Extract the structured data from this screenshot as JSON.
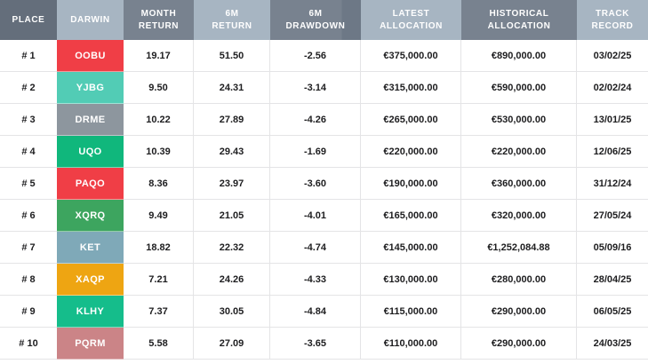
{
  "colors": {
    "header_dark": "#646e7b",
    "header_medium": "#78828f",
    "header_light": "#a7b5c2",
    "header_separator_dark": "#6d7886",
    "body_text": "#1d1d1f",
    "header_text": "#ffffff"
  },
  "table": {
    "columns": [
      {
        "key": "place",
        "label": "PLACE",
        "style": "hdr-dark"
      },
      {
        "key": "darwin",
        "label": "DARWIN",
        "style": "hdr-light"
      },
      {
        "key": "month_return",
        "label": "MONTH\nRETURN",
        "style": "hdr-medium"
      },
      {
        "key": "six_m_return",
        "label": "6M\nRETURN",
        "style": "hdr-light"
      },
      {
        "key": "six_m_drawdown",
        "label": "6M\nDRAWDOWN",
        "style": "hdr-split"
      },
      {
        "key": "latest_allocation",
        "label": "LATEST\nALLOCATION",
        "style": "hdr-light"
      },
      {
        "key": "historical_allocation",
        "label": "HISTORICAL\nALLOCATION",
        "style": "hdr-medium"
      },
      {
        "key": "track_record",
        "label": "TRACK\nRECORD",
        "style": "hdr-light"
      }
    ],
    "rows": [
      {
        "place": "# 1",
        "darwin": "OOBU",
        "darwin_color": "#f03e46",
        "month_return": "19.17",
        "six_m_return": "51.50",
        "six_m_drawdown": "-2.56",
        "latest_allocation": "€375,000.00",
        "historical_allocation": "€890,000.00",
        "track_record": "03/02/25"
      },
      {
        "place": "# 2",
        "darwin": "YJBG",
        "darwin_color": "#52ccb5",
        "month_return": "9.50",
        "six_m_return": "24.31",
        "six_m_drawdown": "-3.14",
        "latest_allocation": "€315,000.00",
        "historical_allocation": "€590,000.00",
        "track_record": "02/02/24"
      },
      {
        "place": "# 3",
        "darwin": "DRME",
        "darwin_color": "#8d969e",
        "month_return": "10.22",
        "six_m_return": "27.89",
        "six_m_drawdown": "-4.26",
        "latest_allocation": "€265,000.00",
        "historical_allocation": "€530,000.00",
        "track_record": "13/01/25"
      },
      {
        "place": "# 4",
        "darwin": "UQO",
        "darwin_color": "#10b77c",
        "month_return": "10.39",
        "six_m_return": "29.43",
        "six_m_drawdown": "-1.69",
        "latest_allocation": "€220,000.00",
        "historical_allocation": "€220,000.00",
        "track_record": "12/06/25"
      },
      {
        "place": "# 5",
        "darwin": "PAQO",
        "darwin_color": "#f03e46",
        "month_return": "8.36",
        "six_m_return": "23.97",
        "six_m_drawdown": "-3.60",
        "latest_allocation": "€190,000.00",
        "historical_allocation": "€360,000.00",
        "track_record": "31/12/24"
      },
      {
        "place": "# 6",
        "darwin": "XQRQ",
        "darwin_color": "#3da55f",
        "month_return": "9.49",
        "six_m_return": "21.05",
        "six_m_drawdown": "-4.01",
        "latest_allocation": "€165,000.00",
        "historical_allocation": "€320,000.00",
        "track_record": "27/05/24"
      },
      {
        "place": "# 7",
        "darwin": "KET",
        "darwin_color": "#7fa9b8",
        "month_return": "18.82",
        "six_m_return": "22.32",
        "six_m_drawdown": "-4.74",
        "latest_allocation": "€145,000.00",
        "historical_allocation": "€1,252,084.88",
        "track_record": "05/09/16"
      },
      {
        "place": "# 8",
        "darwin": "XAQP",
        "darwin_color": "#eea512",
        "month_return": "7.21",
        "six_m_return": "24.26",
        "six_m_drawdown": "-4.33",
        "latest_allocation": "€130,000.00",
        "historical_allocation": "€280,000.00",
        "track_record": "28/04/25"
      },
      {
        "place": "# 9",
        "darwin": "KLHY",
        "darwin_color": "#15bd8b",
        "month_return": "7.37",
        "six_m_return": "30.05",
        "six_m_drawdown": "-4.84",
        "latest_allocation": "€115,000.00",
        "historical_allocation": "€290,000.00",
        "track_record": "06/05/25"
      },
      {
        "place": "# 10",
        "darwin": "PQRM",
        "darwin_color": "#cb8487",
        "month_return": "5.58",
        "six_m_return": "27.09",
        "six_m_drawdown": "-3.65",
        "latest_allocation": "€110,000.00",
        "historical_allocation": "€290,000.00",
        "track_record": "24/03/25"
      }
    ]
  }
}
